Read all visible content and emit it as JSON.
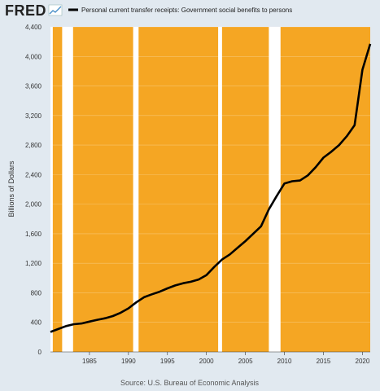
{
  "logo": "FRED",
  "source": "Source: U.S. Bureau of Economic Analysis",
  "colors": {
    "background": "#e1e9f0",
    "plot": "#ffffff",
    "shade": "#f5a623",
    "line": "#000000",
    "logo_accent": "#4a90c8"
  },
  "chart_data": {
    "type": "line",
    "title": "",
    "xlabel": "",
    "ylabel": "Billions of Dollars",
    "xlim": [
      1980,
      2021
    ],
    "ylim": [
      0,
      4400
    ],
    "xticks": [
      1985,
      1990,
      1995,
      2000,
      2005,
      2010,
      2015,
      2020
    ],
    "yticks": [
      0,
      400,
      800,
      1200,
      1600,
      2000,
      2400,
      2800,
      3200,
      3600,
      4000,
      4400
    ],
    "yticklabels": [
      "0",
      "400",
      "800",
      "1,200",
      "1,600",
      "2,000",
      "2,400",
      "2,800",
      "3,200",
      "3,600",
      "4,000",
      "4,400"
    ],
    "shaded_periods": [
      [
        1980.3,
        1981.5
      ],
      [
        1982.9,
        1990.6
      ],
      [
        1991.3,
        2001.5
      ],
      [
        2002.0,
        2008.0
      ],
      [
        2009.5,
        2021.0
      ]
    ],
    "series": [
      {
        "name": "Personal current transfer receipts: Government social benefits to persons",
        "x": [
          1980,
          1981,
          1982,
          1983,
          1984,
          1985,
          1986,
          1987,
          1988,
          1989,
          1990,
          1991,
          1992,
          1993,
          1994,
          1995,
          1996,
          1997,
          1998,
          1999,
          2000,
          2001,
          2002,
          2003,
          2004,
          2005,
          2006,
          2007,
          2008,
          2009,
          2010,
          2011,
          2012,
          2013,
          2014,
          2015,
          2016,
          2017,
          2018,
          2019,
          2020,
          2021
        ],
        "y": [
          270,
          310,
          350,
          375,
          385,
          410,
          435,
          455,
          485,
          530,
          590,
          670,
          740,
          780,
          815,
          860,
          900,
          930,
          950,
          980,
          1040,
          1150,
          1250,
          1320,
          1410,
          1500,
          1600,
          1700,
          1930,
          2110,
          2280,
          2310,
          2320,
          2390,
          2500,
          2630,
          2710,
          2800,
          2920,
          3070,
          3820,
          4170
        ]
      }
    ]
  }
}
